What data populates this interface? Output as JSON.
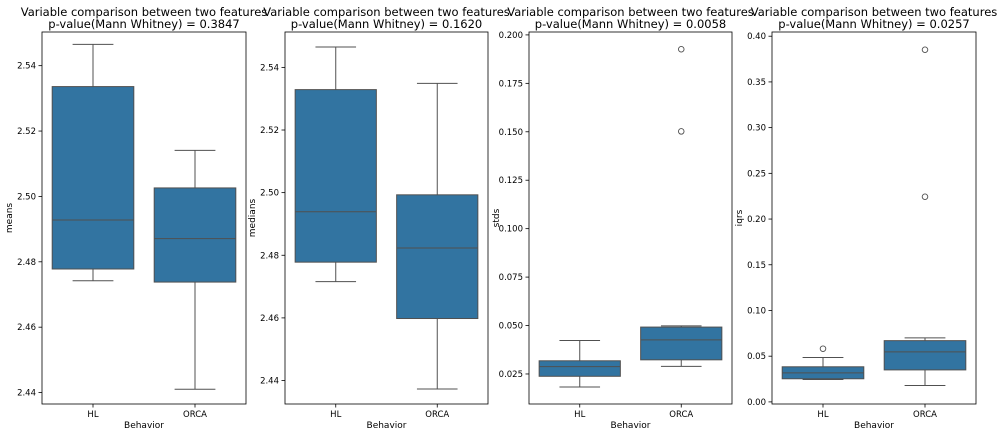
{
  "colors": {
    "box": "#3274a1",
    "line": "#505050",
    "frame": "#000000"
  },
  "chart_data": [
    {
      "type": "box",
      "title": "Variable comparison between two features",
      "subtitle": "p-value(Mann Whitney) = 0.3847",
      "xlabel": "Behavior",
      "ylabel": "means",
      "categories": [
        "HL",
        "ORCA"
      ],
      "ylim": [
        2.4365,
        2.5503
      ],
      "yticks": [
        2.44,
        2.46,
        2.48,
        2.5,
        2.52,
        2.54
      ],
      "ytick_labels": [
        "2.44",
        "2.46",
        "2.48",
        "2.50",
        "2.52",
        "2.54"
      ],
      "boxes": [
        {
          "q1": 2.4778,
          "median": 2.4928,
          "q3": 2.5336,
          "whislo": 2.4742,
          "whishi": 2.5465,
          "fliers": []
        },
        {
          "q1": 2.4738,
          "median": 2.4871,
          "q3": 2.5026,
          "whislo": 2.441,
          "whishi": 2.5141,
          "fliers": []
        }
      ]
    },
    {
      "type": "box",
      "title": "Variable comparison between two features",
      "subtitle": "p-value(Mann Whitney) = 0.1620",
      "xlabel": "Behavior",
      "ylabel": "medians",
      "categories": [
        "HL",
        "ORCA"
      ],
      "ylim": [
        2.4325,
        2.5513
      ],
      "yticks": [
        2.44,
        2.46,
        2.48,
        2.5,
        2.52,
        2.54
      ],
      "ytick_labels": [
        "2.44",
        "2.46",
        "2.48",
        "2.50",
        "2.52",
        "2.54"
      ],
      "boxes": [
        {
          "q1": 2.4778,
          "median": 2.4939,
          "q3": 2.5329,
          "whislo": 2.4716,
          "whishi": 2.5465,
          "fliers": []
        },
        {
          "q1": 2.4598,
          "median": 2.4823,
          "q3": 2.4993,
          "whislo": 2.4373,
          "whishi": 2.5349,
          "fliers": []
        }
      ]
    },
    {
      "type": "box",
      "title": "Variable comparison between two features",
      "subtitle": "p-value(Mann Whitney) = 0.0058",
      "xlabel": "Behavior",
      "ylabel": "stds",
      "categories": [
        "HL",
        "ORCA"
      ],
      "ylim": [
        0.0095,
        0.2015
      ],
      "yticks": [
        0.025,
        0.05,
        0.075,
        0.1,
        0.125,
        0.15,
        0.175,
        0.2
      ],
      "ytick_labels": [
        "0.025",
        "0.050",
        "0.075",
        "0.100",
        "0.125",
        "0.150",
        "0.175",
        "0.200"
      ],
      "boxes": [
        {
          "q1": 0.0238,
          "median": 0.0288,
          "q3": 0.0318,
          "whislo": 0.0183,
          "whishi": 0.0423,
          "fliers": []
        },
        {
          "q1": 0.0323,
          "median": 0.0426,
          "q3": 0.0492,
          "whislo": 0.0289,
          "whishi": 0.0498,
          "fliers": [
            0.1502,
            0.1926
          ]
        }
      ]
    },
    {
      "type": "box",
      "title": "Variable comparison between two features",
      "subtitle": "p-value(Mann Whitney) = 0.0257",
      "xlabel": "Behavior",
      "ylabel": "iqrs",
      "categories": [
        "HL",
        "ORCA"
      ],
      "ylim": [
        -0.0023,
        0.4046
      ],
      "yticks": [
        0.0,
        0.05,
        0.1,
        0.15,
        0.2,
        0.25,
        0.3,
        0.35,
        0.4
      ],
      "ytick_labels": [
        "0.00",
        "0.05",
        "0.10",
        "0.15",
        "0.20",
        "0.25",
        "0.30",
        "0.35",
        "0.40"
      ],
      "boxes": [
        {
          "q1": 0.0253,
          "median": 0.0317,
          "q3": 0.0384,
          "whislo": 0.0245,
          "whishi": 0.0485,
          "fliers": [
            0.0582
          ]
        },
        {
          "q1": 0.035,
          "median": 0.0547,
          "q3": 0.067,
          "whislo": 0.0179,
          "whishi": 0.07,
          "fliers": [
            0.2244,
            0.3852
          ]
        }
      ]
    }
  ]
}
